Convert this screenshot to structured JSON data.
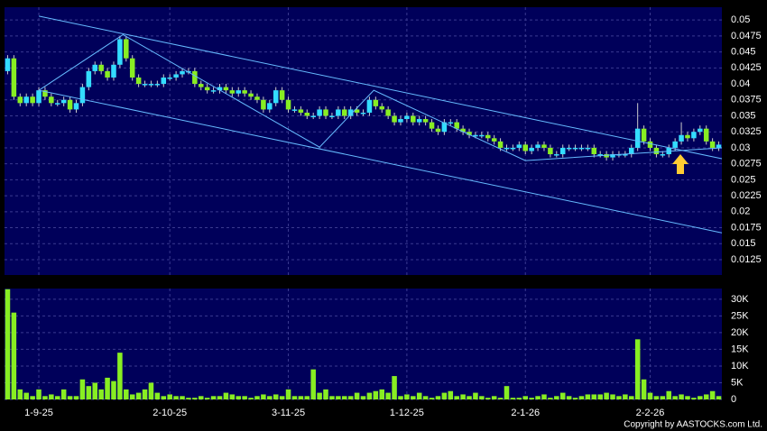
{
  "chart_data": {
    "type": "candlestick",
    "grid": true,
    "up_color": "#33ddff",
    "down_color": "#88ee22",
    "volume_color": "#88ee22",
    "line_color": "#66bbff",
    "categories": [
      null,
      null,
      null,
      null,
      null,
      "1-9-25",
      null,
      null,
      null,
      null,
      null,
      null,
      null,
      null,
      null,
      null,
      null,
      null,
      null,
      null,
      null,
      null,
      null,
      null,
      null,
      null,
      "2-10-25",
      null,
      null,
      null,
      null,
      null,
      null,
      null,
      null,
      null,
      null,
      null,
      null,
      null,
      null,
      null,
      null,
      null,
      null,
      "3-11-25",
      null,
      null,
      null,
      null,
      null,
      null,
      null,
      null,
      null,
      null,
      null,
      null,
      null,
      null,
      null,
      null,
      null,
      null,
      "1-12-25",
      null,
      null,
      null,
      null,
      null,
      null,
      null,
      null,
      null,
      null,
      null,
      null,
      null,
      null,
      null,
      null,
      null,
      null,
      "2-1-26",
      null,
      null,
      null,
      null,
      null,
      null,
      null,
      null,
      null,
      null,
      null,
      null,
      null,
      null,
      null,
      null,
      null,
      null,
      null,
      "2-2-26",
      null,
      null,
      null,
      null,
      null,
      null,
      null,
      null,
      null,
      null,
      null
    ],
    "ohlc": [
      [
        0.042,
        0.0445,
        0.0415,
        0.044
      ],
      [
        0.044,
        0.0445,
        0.0375,
        0.038
      ],
      [
        0.038,
        0.0385,
        0.0365,
        0.037
      ],
      [
        0.037,
        0.0385,
        0.0365,
        0.038
      ],
      [
        0.038,
        0.0385,
        0.0365,
        0.037
      ],
      [
        0.037,
        0.0395,
        0.0365,
        0.039
      ],
      [
        0.039,
        0.0395,
        0.0375,
        0.038
      ],
      [
        0.038,
        0.0385,
        0.0365,
        0.037
      ],
      [
        0.037,
        0.0375,
        0.0365,
        0.037
      ],
      [
        0.037,
        0.038,
        0.0365,
        0.0375
      ],
      [
        0.0375,
        0.038,
        0.0355,
        0.036
      ],
      [
        0.036,
        0.0375,
        0.0355,
        0.037
      ],
      [
        0.037,
        0.04,
        0.0365,
        0.0395
      ],
      [
        0.0395,
        0.0425,
        0.039,
        0.042
      ],
      [
        0.042,
        0.0435,
        0.0415,
        0.043
      ],
      [
        0.043,
        0.0435,
        0.0415,
        0.042
      ],
      [
        0.042,
        0.0425,
        0.0405,
        0.041
      ],
      [
        0.041,
        0.0435,
        0.0405,
        0.043
      ],
      [
        0.043,
        0.0475,
        0.0425,
        0.047
      ],
      [
        0.047,
        0.0475,
        0.0435,
        0.044
      ],
      [
        0.044,
        0.0445,
        0.0405,
        0.041
      ],
      [
        0.041,
        0.0415,
        0.0395,
        0.04
      ],
      [
        0.04,
        0.0405,
        0.0395,
        0.04
      ],
      [
        0.04,
        0.0405,
        0.0395,
        0.04
      ],
      [
        0.04,
        0.0405,
        0.0395,
        0.04
      ],
      [
        0.04,
        0.0415,
        0.0395,
        0.041
      ],
      [
        0.041,
        0.0415,
        0.0405,
        0.041
      ],
      [
        0.041,
        0.042,
        0.0405,
        0.0415
      ],
      [
        0.0415,
        0.0425,
        0.041,
        0.042
      ],
      [
        0.042,
        0.0425,
        0.0415,
        0.042
      ],
      [
        0.042,
        0.0425,
        0.0395,
        0.04
      ],
      [
        0.04,
        0.0405,
        0.039,
        0.0395
      ],
      [
        0.0395,
        0.04,
        0.0385,
        0.039
      ],
      [
        0.039,
        0.0395,
        0.0385,
        0.039
      ],
      [
        0.039,
        0.04,
        0.0385,
        0.0395
      ],
      [
        0.0395,
        0.04,
        0.0385,
        0.039
      ],
      [
        0.039,
        0.0395,
        0.038,
        0.0385
      ],
      [
        0.0385,
        0.0395,
        0.038,
        0.039
      ],
      [
        0.039,
        0.0395,
        0.038,
        0.0385
      ],
      [
        0.0385,
        0.039,
        0.0375,
        0.038
      ],
      [
        0.038,
        0.0385,
        0.037,
        0.0375
      ],
      [
        0.0375,
        0.038,
        0.0355,
        0.036
      ],
      [
        0.036,
        0.0375,
        0.0355,
        0.037
      ],
      [
        0.037,
        0.0395,
        0.0365,
        0.039
      ],
      [
        0.039,
        0.0395,
        0.037,
        0.0375
      ],
      [
        0.0375,
        0.038,
        0.0355,
        0.036
      ],
      [
        0.036,
        0.0365,
        0.0355,
        0.036
      ],
      [
        0.036,
        0.0365,
        0.035,
        0.0355
      ],
      [
        0.0355,
        0.036,
        0.0345,
        0.035
      ],
      [
        0.035,
        0.0355,
        0.0345,
        0.035
      ],
      [
        0.035,
        0.0365,
        0.0345,
        0.036
      ],
      [
        0.036,
        0.0365,
        0.0345,
        0.035
      ],
      [
        0.035,
        0.0355,
        0.0345,
        0.035
      ],
      [
        0.035,
        0.0365,
        0.0345,
        0.036
      ],
      [
        0.036,
        0.0365,
        0.0345,
        0.035
      ],
      [
        0.035,
        0.0365,
        0.0345,
        0.036
      ],
      [
        0.036,
        0.0365,
        0.035,
        0.0355
      ],
      [
        0.0355,
        0.036,
        0.035,
        0.0355
      ],
      [
        0.0355,
        0.038,
        0.035,
        0.0375
      ],
      [
        0.0375,
        0.038,
        0.036,
        0.0365
      ],
      [
        0.0365,
        0.037,
        0.0355,
        0.036
      ],
      [
        0.036,
        0.0365,
        0.0345,
        0.035
      ],
      [
        0.035,
        0.0355,
        0.0335,
        0.034
      ],
      [
        0.034,
        0.035,
        0.0335,
        0.0345
      ],
      [
        0.0345,
        0.0355,
        0.034,
        0.035
      ],
      [
        0.035,
        0.0355,
        0.0335,
        0.034
      ],
      [
        0.034,
        0.035,
        0.0335,
        0.0345
      ],
      [
        0.0345,
        0.035,
        0.0335,
        0.034
      ],
      [
        0.034,
        0.0345,
        0.0325,
        0.033
      ],
      [
        0.033,
        0.0335,
        0.032,
        0.0325
      ],
      [
        0.0325,
        0.0345,
        0.032,
        0.034
      ],
      [
        0.034,
        0.0345,
        0.0335,
        0.034
      ],
      [
        0.034,
        0.0345,
        0.0325,
        0.033
      ],
      [
        0.033,
        0.0335,
        0.032,
        0.0325
      ],
      [
        0.0325,
        0.033,
        0.0315,
        0.032
      ],
      [
        0.032,
        0.0325,
        0.0315,
        0.032
      ],
      [
        0.032,
        0.0325,
        0.0315,
        0.032
      ],
      [
        0.032,
        0.0325,
        0.031,
        0.0315
      ],
      [
        0.0315,
        0.032,
        0.0305,
        0.031
      ],
      [
        0.031,
        0.0315,
        0.0295,
        0.03
      ],
      [
        0.03,
        0.0305,
        0.0295,
        0.03
      ],
      [
        0.03,
        0.0305,
        0.0295,
        0.03
      ],
      [
        0.03,
        0.031,
        0.0295,
        0.0305
      ],
      [
        0.0305,
        0.031,
        0.029,
        0.0295
      ],
      [
        0.0295,
        0.0305,
        0.029,
        0.03
      ],
      [
        0.03,
        0.031,
        0.0295,
        0.0305
      ],
      [
        0.0305,
        0.031,
        0.0295,
        0.03
      ],
      [
        0.03,
        0.0305,
        0.0285,
        0.029
      ],
      [
        0.029,
        0.0295,
        0.0285,
        0.029
      ],
      [
        0.029,
        0.0305,
        0.0285,
        0.03
      ],
      [
        0.03,
        0.0305,
        0.0295,
        0.03
      ],
      [
        0.03,
        0.0305,
        0.0295,
        0.03
      ],
      [
        0.03,
        0.0305,
        0.0295,
        0.03
      ],
      [
        0.03,
        0.0305,
        0.0295,
        0.03
      ],
      [
        0.03,
        0.0305,
        0.0285,
        0.029
      ],
      [
        0.029,
        0.0295,
        0.0285,
        0.029
      ],
      [
        0.029,
        0.0295,
        0.028,
        0.0285
      ],
      [
        0.0285,
        0.0295,
        0.028,
        0.029
      ],
      [
        0.029,
        0.0295,
        0.0285,
        0.029
      ],
      [
        0.029,
        0.0295,
        0.0285,
        0.029
      ],
      [
        0.029,
        0.0305,
        0.0285,
        0.03
      ],
      [
        0.03,
        0.037,
        0.0295,
        0.033
      ],
      [
        0.033,
        0.0335,
        0.0305,
        0.031
      ],
      [
        0.031,
        0.0315,
        0.0295,
        0.03
      ],
      [
        0.03,
        0.0305,
        0.0285,
        0.029
      ],
      [
        0.029,
        0.0295,
        0.0285,
        0.029
      ],
      [
        0.029,
        0.0305,
        0.0285,
        0.03
      ],
      [
        0.03,
        0.0315,
        0.0295,
        0.031
      ],
      [
        0.031,
        0.034,
        0.0305,
        0.032
      ],
      [
        0.032,
        0.0325,
        0.031,
        0.0315
      ],
      [
        0.0315,
        0.033,
        0.031,
        0.0325
      ],
      [
        0.0325,
        0.0335,
        0.032,
        0.033
      ],
      [
        0.033,
        0.0335,
        0.0305,
        0.031
      ],
      [
        0.031,
        0.0315,
        0.0295,
        0.03
      ],
      [
        0.03,
        0.031,
        0.0295,
        0.0305
      ]
    ],
    "volume": [
      33000,
      26000,
      3000,
      2000,
      1000,
      3000,
      1000,
      1500,
      1000,
      3000,
      1000,
      1000,
      6000,
      4000,
      5000,
      3000,
      6500,
      5500,
      14000,
      3000,
      1500,
      2000,
      3000,
      5000,
      2000,
      1000,
      1500,
      1000,
      1000,
      500,
      500,
      1000,
      500,
      1000,
      1000,
      2000,
      1500,
      1000,
      1000,
      500,
      1000,
      1500,
      1000,
      1500,
      1000,
      3000,
      1000,
      1000,
      1000,
      9000,
      2000,
      3000,
      1000,
      1000,
      1000,
      1000,
      2000,
      1000,
      2000,
      2500,
      3000,
      2000,
      7000,
      1000,
      1500,
      1000,
      2000,
      1000,
      500,
      1000,
      2000,
      2500,
      1000,
      1500,
      1000,
      2000,
      1000,
      500,
      1000,
      500,
      4000,
      500,
      500,
      1000,
      500,
      1000,
      1500,
      500,
      1000,
      2000,
      1000,
      500,
      1000,
      1500,
      1500,
      1500,
      2000,
      1500,
      1000,
      1500,
      1000,
      18000,
      6000,
      2000,
      1000,
      1000,
      2500,
      1000,
      1500,
      1000,
      500,
      1000,
      1500,
      2500,
      1000
    ],
    "ylim": [
      0.0101,
      0.052
    ],
    "yticks": [
      0.0125,
      0.015,
      0.0175,
      0.02,
      0.0225,
      0.025,
      0.0275,
      0.03,
      0.0325,
      0.035,
      0.0375,
      0.04,
      0.0425,
      0.045,
      0.0475,
      0.05
    ],
    "y2lim": [
      0,
      33200
    ],
    "y2ticks": [
      0,
      {
        "value": 5000,
        "label": "5K"
      },
      {
        "value": 10000,
        "label": "10K"
      },
      {
        "value": 15000,
        "label": "15K"
      },
      {
        "value": 20000,
        "label": "20K"
      },
      {
        "value": 25000,
        "label": "25K"
      },
      {
        "value": 30000,
        "label": "30K"
      }
    ],
    "trendlines": [
      {
        "points": [
          [
            5,
            0.0506
          ],
          [
            114.5,
            0.0283
          ]
        ]
      },
      {
        "points": [
          [
            5,
            0.039
          ],
          [
            114.5,
            0.0167
          ]
        ]
      },
      {
        "points": [
          [
            5,
            0.039
          ],
          [
            18.5,
            0.0477
          ],
          [
            50,
            0.0301
          ],
          [
            58.7,
            0.039
          ],
          [
            83,
            0.028
          ],
          [
            114.5,
            0.03
          ]
        ]
      }
    ],
    "copyright": "Copyright by AASTOCKS.com Ltd."
  }
}
